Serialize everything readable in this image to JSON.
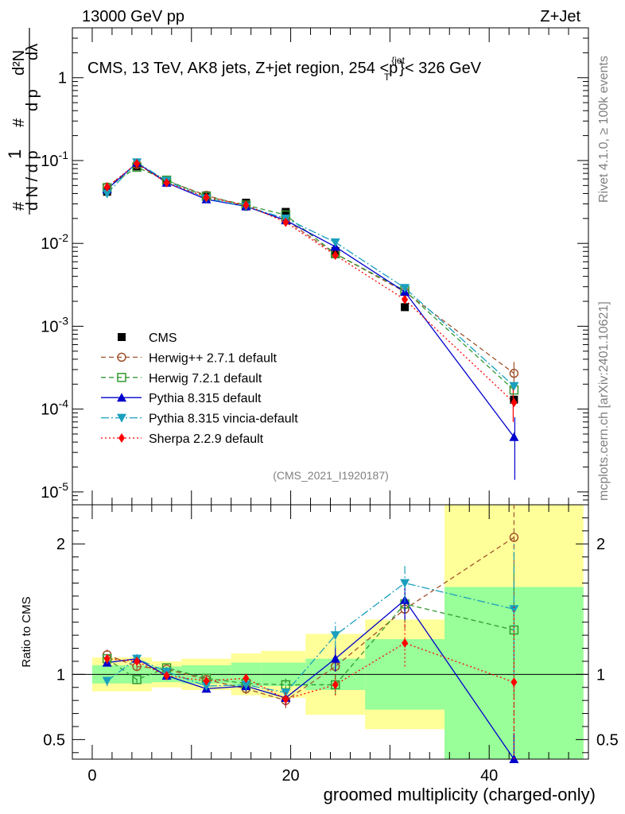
{
  "header": {
    "left": "13000 GeV pp",
    "right": "Z+Jet"
  },
  "side": {
    "rivet": "Rivet 4.1.0, ≥ 100k events",
    "mcplots": "mcplots.cern.ch [arXiv:2401.10621]"
  },
  "chart_data": {
    "type": "line",
    "title": "CMS, 13 TeV, AK8 jets, Z+jet region, 254 <p",
    "title_sup": "{jet",
    "title_sub": "T",
    "title_after": "}< 326 GeV",
    "analysis": "(CMS_2021_I1920187)",
    "xlabel": "groomed multiplicity (charged-only)",
    "ylabel_ratio": "Ratio to CMS",
    "ylabel_main": "1/N dN/dp_T dλ",
    "xlim": [
      -2,
      50
    ],
    "ylim_main": [
      7e-06,
      4
    ],
    "ylim_ratio": [
      0.35,
      2.3
    ],
    "x_ticks": [
      {
        "value": 0,
        "label": "0"
      },
      {
        "value": 20,
        "label": "20"
      },
      {
        "value": 40,
        "label": "40"
      }
    ],
    "y_ticks_main": [
      {
        "value": 1,
        "label": "1"
      },
      {
        "value": 0.1,
        "label": "10",
        "exp": "-1"
      },
      {
        "value": 0.01,
        "label": "10",
        "exp": "-2"
      },
      {
        "value": 0.001,
        "label": "10",
        "exp": "-3"
      },
      {
        "value": 0.0001,
        "label": "10",
        "exp": "-4"
      },
      {
        "value": 1e-05,
        "label": "10",
        "exp": "-5"
      }
    ],
    "y_ticks_ratio": [
      {
        "value": 0.5,
        "label": "0.5"
      },
      {
        "value": 1,
        "label": "1"
      },
      {
        "value": 2,
        "label": "2"
      }
    ],
    "bins": [
      {
        "lo": 0,
        "hi": 3,
        "center": 1.5
      },
      {
        "lo": 3,
        "hi": 6,
        "center": 4.5
      },
      {
        "lo": 6,
        "hi": 9,
        "center": 7.5
      },
      {
        "lo": 9,
        "hi": 14,
        "center": 11.5
      },
      {
        "lo": 14,
        "hi": 17,
        "center": 15.5
      },
      {
        "lo": 17,
        "hi": 21.5,
        "center": 19.5
      },
      {
        "lo": 21.5,
        "hi": 27.5,
        "center": 24.5
      },
      {
        "lo": 27.5,
        "hi": 35.5,
        "center": 31.5
      },
      {
        "lo": 35.5,
        "hi": 49.5,
        "center": 42.5
      }
    ],
    "data": {
      "name": "CMS",
      "values": [
        0.042,
        0.085,
        0.055,
        0.038,
        0.031,
        0.024,
        0.0081,
        0.0017,
        0.00013
      ],
      "band_stat": [
        0.07,
        0.07,
        0.06,
        0.07,
        0.09,
        0.09,
        0.12,
        0.27,
        0.67
      ],
      "band_tot": [
        0.13,
        0.13,
        0.1,
        0.12,
        0.16,
        0.18,
        0.31,
        0.42,
        1.35
      ]
    },
    "series": [
      {
        "name": "Herwig++ 2.7.1 default",
        "color": "#a0522d",
        "dash": "6,4",
        "marker": "circle-open",
        "values": [
          0.048,
          0.09,
          0.057,
          0.038,
          0.028,
          0.019,
          0.0075,
          0.0026,
          0.00027
        ],
        "ratio": [
          1.15,
          1.06,
          1.04,
          0.96,
          0.89,
          0.8,
          1.06,
          1.5,
          2.05
        ],
        "ratio_err": [
          0.04,
          0.03,
          0.03,
          0.03,
          0.04,
          0.06,
          0.1,
          0.15,
          1.55
        ]
      },
      {
        "name": "Herwig 7.2.1 default",
        "color": "#339933",
        "dash": "6,4",
        "marker": "square-open",
        "values": [
          0.047,
          0.083,
          0.058,
          0.037,
          0.029,
          0.022,
          0.0075,
          0.0027,
          0.00017
        ],
        "ratio": [
          1.12,
          0.96,
          1.05,
          0.97,
          0.93,
          0.92,
          0.92,
          1.54,
          1.34
        ],
        "ratio_err": [
          0.03,
          0.03,
          0.03,
          0.03,
          0.03,
          0.05,
          0.08,
          0.14,
          0.5
        ]
      },
      {
        "name": "Pythia 8.315 default",
        "color": "#0000cc",
        "dash": "",
        "marker": "triangle-up",
        "values": [
          0.045,
          0.094,
          0.054,
          0.034,
          0.028,
          0.019,
          0.0091,
          0.0026,
          4.6e-05
        ],
        "ratio": [
          1.09,
          1.12,
          0.99,
          0.89,
          0.91,
          0.82,
          1.12,
          1.57,
          0.35
        ],
        "ratio_err": [
          0.03,
          0.03,
          0.03,
          0.03,
          0.04,
          0.06,
          0.1,
          0.15,
          0.2
        ]
      },
      {
        "name": "Pythia 8.315 vincia-default",
        "color": "#1a9fbd",
        "dash": "10,3,2,3",
        "marker": "triangle-down",
        "values": [
          0.04,
          0.095,
          0.057,
          0.035,
          0.028,
          0.02,
          0.0103,
          0.0029,
          0.00019
        ],
        "ratio": [
          0.95,
          1.12,
          1.02,
          0.91,
          0.92,
          0.86,
          1.3,
          1.7,
          1.5
        ],
        "ratio_err": [
          0.04,
          0.03,
          0.03,
          0.03,
          0.04,
          0.06,
          0.1,
          0.15,
          0.5
        ]
      },
      {
        "name": "Sherpa 2.2.9 default",
        "color": "#ff0000",
        "dash": "2,3",
        "marker": "diamond",
        "values": [
          0.048,
          0.092,
          0.054,
          0.036,
          0.029,
          0.018,
          0.0072,
          0.0021,
          0.00012
        ],
        "ratio": [
          1.12,
          1.1,
          0.99,
          0.95,
          0.97,
          0.81,
          0.92,
          1.24,
          0.94
        ],
        "ratio_err": [
          0.04,
          0.03,
          0.03,
          0.03,
          0.03,
          0.05,
          0.08,
          0.18,
          0.6
        ]
      }
    ],
    "main_errors_last": {
      "herwig_pp": [
        0.00021,
        0.00037
      ],
      "pythia": [
        1.4e-05,
        8e-05
      ],
      "sherpa": [
        7e-05,
        0.00018
      ]
    }
  }
}
